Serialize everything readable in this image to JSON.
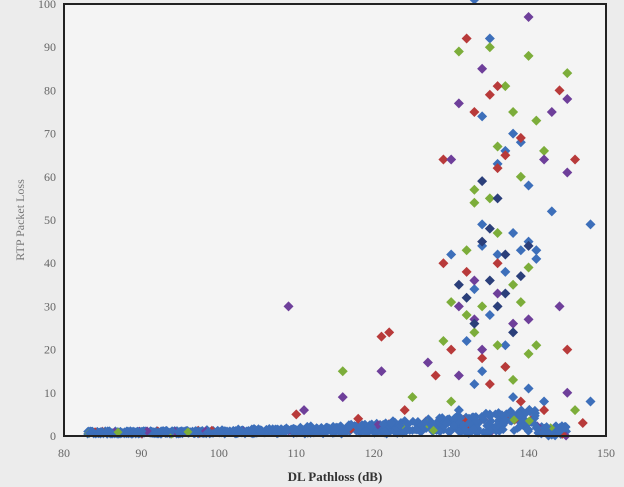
{
  "chart_data": {
    "type": "scatter",
    "title": "",
    "xlabel": "DL Pathloss (dB)",
    "ylabel": "RTP Packet Loss",
    "xlim": [
      80,
      150
    ],
    "ylim": [
      0,
      100
    ],
    "xticks": [
      80,
      90,
      100,
      110,
      120,
      130,
      140,
      150
    ],
    "yticks": [
      0,
      10,
      20,
      30,
      40,
      50,
      60,
      70,
      80,
      90,
      100
    ],
    "grid": false,
    "legend": "none",
    "colors": {
      "blue": "#3d6fba",
      "green": "#7cad3a",
      "red": "#b83a3a",
      "purple": "#6e3f9a",
      "navy": "#2b3f7a"
    },
    "series": [
      {
        "color": "blue",
        "points": [
          [
            133,
            101
          ],
          [
            135,
            92
          ],
          [
            134,
            74
          ],
          [
            140,
            58
          ],
          [
            138,
            47
          ],
          [
            139,
            43
          ],
          [
            136,
            42
          ],
          [
            134,
            44
          ],
          [
            133,
            34
          ],
          [
            137,
            38
          ],
          [
            141,
            41
          ],
          [
            143,
            52
          ],
          [
            148,
            49
          ],
          [
            135,
            28
          ],
          [
            132,
            22
          ],
          [
            137,
            21
          ],
          [
            134,
            15
          ],
          [
            133,
            12
          ],
          [
            140,
            11
          ],
          [
            138,
            9
          ],
          [
            142,
            8
          ],
          [
            148,
            8
          ],
          [
            131,
            6
          ],
          [
            135,
            5
          ],
          [
            137,
            66
          ],
          [
            139,
            68
          ],
          [
            138,
            70
          ],
          [
            136,
            63
          ],
          [
            140,
            45
          ],
          [
            141,
            43
          ],
          [
            134,
            49
          ],
          [
            130,
            42
          ]
        ]
      },
      {
        "color": "green",
        "points": [
          [
            131,
            89
          ],
          [
            135,
            90
          ],
          [
            137,
            81
          ],
          [
            140,
            88
          ],
          [
            141,
            73
          ],
          [
            138,
            75
          ],
          [
            136,
            67
          ],
          [
            133,
            57
          ],
          [
            133,
            54
          ],
          [
            135,
            55
          ],
          [
            139,
            60
          ],
          [
            142,
            66
          ],
          [
            145,
            84
          ],
          [
            132,
            43
          ],
          [
            136,
            47
          ],
          [
            138,
            35
          ],
          [
            139,
            31
          ],
          [
            134,
            30
          ],
          [
            132,
            28
          ],
          [
            130,
            31
          ],
          [
            133,
            24
          ],
          [
            136,
            21
          ],
          [
            140,
            19
          ],
          [
            137,
            16
          ],
          [
            116,
            15
          ],
          [
            125,
            9
          ],
          [
            130,
            8
          ],
          [
            138,
            13
          ],
          [
            141,
            21
          ],
          [
            129,
            22
          ],
          [
            140,
            39
          ],
          [
            146,
            6
          ]
        ]
      },
      {
        "color": "red",
        "points": [
          [
            132,
            92
          ],
          [
            136,
            81
          ],
          [
            135,
            79
          ],
          [
            139,
            69
          ],
          [
            133,
            75
          ],
          [
            137,
            65
          ],
          [
            144,
            80
          ],
          [
            146,
            64
          ],
          [
            129,
            64
          ],
          [
            136,
            62
          ],
          [
            132,
            38
          ],
          [
            136,
            40
          ],
          [
            129,
            40
          ],
          [
            121,
            23
          ],
          [
            122,
            24
          ],
          [
            130,
            20
          ],
          [
            134,
            18
          ],
          [
            137,
            16
          ],
          [
            145,
            20
          ],
          [
            128,
            14
          ],
          [
            135,
            12
          ],
          [
            139,
            8
          ],
          [
            124,
            6
          ],
          [
            118,
            4
          ],
          [
            110,
            5
          ],
          [
            142,
            6
          ],
          [
            147,
            3
          ]
        ]
      },
      {
        "color": "purple",
        "points": [
          [
            140,
            97
          ],
          [
            131,
            77
          ],
          [
            134,
            85
          ],
          [
            143,
            75
          ],
          [
            145,
            78
          ],
          [
            142,
            64
          ],
          [
            130,
            64
          ],
          [
            145,
            61
          ],
          [
            133,
            36
          ],
          [
            136,
            33
          ],
          [
            144,
            30
          ],
          [
            131,
            30
          ],
          [
            109,
            30
          ],
          [
            127,
            17
          ],
          [
            134,
            20
          ],
          [
            138,
            26
          ],
          [
            140,
            27
          ],
          [
            145,
            10
          ],
          [
            116,
            9
          ],
          [
            111,
            6
          ],
          [
            121,
            15
          ],
          [
            131,
            14
          ],
          [
            133,
            27
          ]
        ]
      },
      {
        "color": "navy",
        "points": [
          [
            134,
            45
          ],
          [
            137,
            42
          ],
          [
            135,
            48
          ],
          [
            131,
            35
          ],
          [
            139,
            37
          ],
          [
            136,
            30
          ],
          [
            133,
            26
          ],
          [
            138,
            24
          ],
          [
            137,
            33
          ],
          [
            132,
            32
          ],
          [
            135,
            36
          ],
          [
            140,
            44
          ],
          [
            136,
            55
          ],
          [
            134,
            59
          ]
        ]
      }
    ]
  }
}
